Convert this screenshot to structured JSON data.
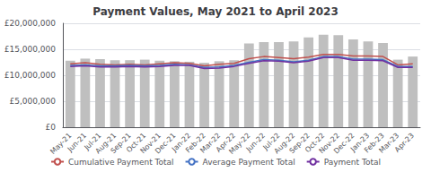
{
  "chart_data": {
    "type": "bar",
    "title": "Payment Values, May 2021 to April 2023",
    "categories": [
      "May-21",
      "Jun-21",
      "Jul-21",
      "Aug-21",
      "Sep-21",
      "Oct-21",
      "Nov-21",
      "Dec-21",
      "Jan-22",
      "Feb-22",
      "Mar-22",
      "Apr-22",
      "May-22",
      "Jun-22",
      "Jul-22",
      "Aug-22",
      "Sep-22",
      "Oct-22",
      "Nov-22",
      "Dec-22",
      "Jan-23",
      "Feb-23",
      "Mar-23",
      "Apr-23"
    ],
    "series": [
      {
        "type": "bar",
        "color": "#bfbfbf",
        "values": [
          12800000,
          13200000,
          13100000,
          12900000,
          12900000,
          13000000,
          12800000,
          12700000,
          12600000,
          12400000,
          12700000,
          12900000,
          16100000,
          16400000,
          16400000,
          16500000,
          17300000,
          17800000,
          17700000,
          16900000,
          16500000,
          16200000,
          13000000,
          13600000
        ]
      },
      {
        "type": "line",
        "name": "Cumulative Payment Total",
        "color": "#c0504d",
        "values": [
          12200000,
          12400000,
          12100000,
          12000000,
          12100000,
          12000000,
          12200000,
          12400000,
          12300000,
          11800000,
          12100000,
          12300000,
          13200000,
          13600000,
          13400000,
          13200000,
          13500000,
          14000000,
          14000000,
          13700000,
          13700000,
          13600000,
          12000000,
          12200000
        ]
      },
      {
        "type": "line",
        "name": "Average Payment Total",
        "color": "#4472c4",
        "values": [
          11900000,
          12000000,
          11800000,
          11800000,
          11900000,
          11800000,
          11900000,
          12100000,
          12000000,
          11500000,
          11600000,
          11900000,
          12500000,
          13000000,
          12900000,
          12600000,
          12900000,
          13600000,
          13600000,
          13100000,
          13100000,
          13000000,
          11700000,
          11700000
        ]
      },
      {
        "type": "line",
        "name": "Payment Total",
        "color": "#7030a0",
        "values": [
          11700000,
          11800000,
          11600000,
          11600000,
          11700000,
          11600000,
          11700000,
          11900000,
          11900000,
          11300000,
          11400000,
          11700000,
          12300000,
          12800000,
          12700000,
          12400000,
          12700000,
          13400000,
          13400000,
          12900000,
          12900000,
          12800000,
          11500000,
          11500000
        ]
      }
    ],
    "ylim": [
      0,
      20000000
    ],
    "yticks": [
      {
        "value": 0,
        "label": "£0"
      },
      {
        "value": 5000000,
        "label": "£5,000,000"
      },
      {
        "value": 10000000,
        "label": "£10,000,000"
      },
      {
        "value": 15000000,
        "label": "£15,000,000"
      },
      {
        "value": 20000000,
        "label": "£20,000,000"
      }
    ],
    "grid": true,
    "legend": "bottom"
  }
}
